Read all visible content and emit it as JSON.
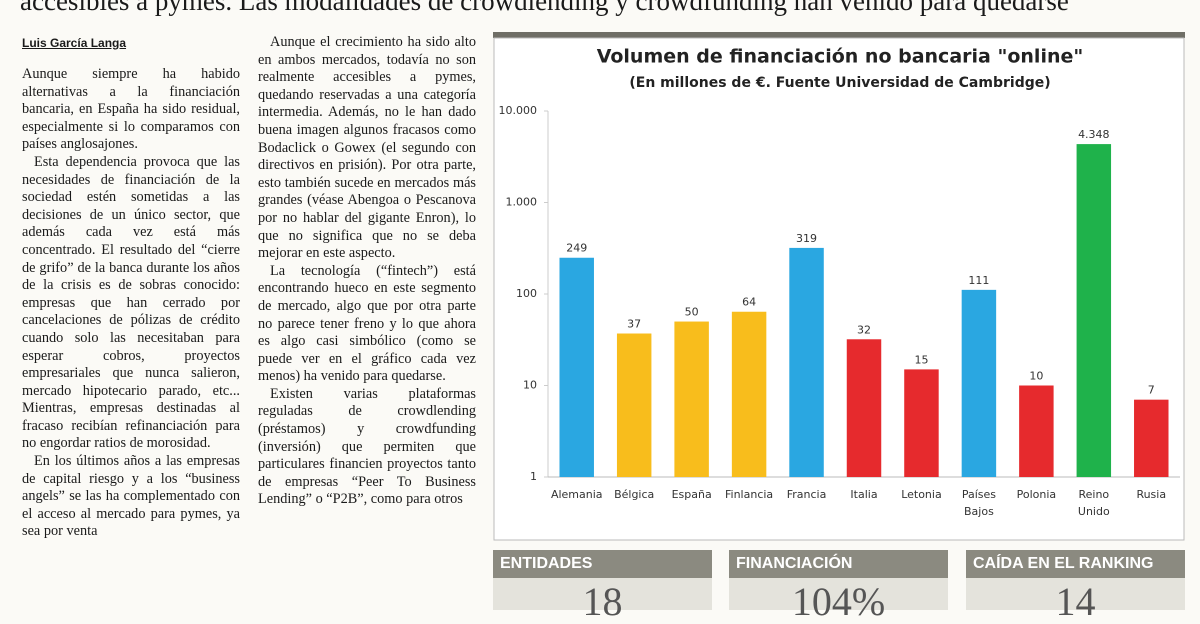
{
  "headline": "accesibles a pymes. Las modalidades de crowdlending y crowdfunding han venido para quedarse",
  "author": "Luis García Langa",
  "columns": [
    [
      "Aunque siempre ha habido alternativas a la financiación bancaria, en España ha sido residual, especialmente si lo comparamos con países anglosajones.",
      "Esta dependencia provoca que las necesidades de financiación de la sociedad estén sometidas a las decisiones de un único sector, que además cada vez está más concentrado. El resultado del “cierre de grifo” de la banca durante los años de la crisis es de sobras conocido: empresas que han cerrado por cancelaciones de pólizas de crédito cuando solo las necesitaban para esperar cobros, proyectos empresariales que nunca salieron, mercado hipotecario parado, etc... Mientras, empresas destinadas al fracaso recibían refinanciación para no engordar ratios de morosidad.",
      "En los últimos años a las empresas de capital riesgo y a los “business angels” se las ha complementado con el acceso al mercado para pymes, ya sea por venta"
    ],
    [
      "Aunque el crecimiento ha sido alto en ambos mercados, todavía no son realmente accesibles a pymes, quedando reservadas a una categoría intermedia. Además, no le han dado buena imagen algunos fracasos como Bodaclick o Gowex (el segundo con directivos en prisión). Por otra parte, esto también sucede en mercados más grandes (véase Abengoa o Pescanova por no hablar del gigante Enron), lo que no significa que no se deba mejorar en este aspecto.",
      "La tecnología (“fintech”) está encontrando hueco en este segmento de mercado, algo que por otra parte no parece tener freno y lo que ahora es algo casi simbólico (como se puede ver en el gráfico cada vez menos) ha venido para quedarse.",
      "Existen varias plataformas reguladas de crowdlending (préstamos) y crowdfunding (inversión) que permiten que particulares financien proyectos tanto de empresas “Peer To Business Lending” o “P2B”, como para otros"
    ]
  ],
  "chart_data": {
    "type": "bar",
    "title": "Volumen de financiación no bancaria \"online\"",
    "subtitle": "(En millones de €. Fuente Universidad de Cambridge)",
    "categories": [
      "Alemania",
      "Bélgica",
      "España",
      "Finlancia",
      "Francia",
      "Italia",
      "Letonia",
      "Países Bajos",
      "Polonia",
      "Reino Unido",
      "Rusia"
    ],
    "values": [
      249,
      37,
      50,
      64,
      319,
      32,
      15,
      111,
      10,
      4348,
      7
    ],
    "value_labels": [
      "249",
      "37",
      "50",
      "64",
      "319",
      "32",
      "15",
      "111",
      "10",
      "4.348",
      "7"
    ],
    "colors": [
      "#2aa7e1",
      "#f8bd1c",
      "#f8bd1c",
      "#f8bd1c",
      "#2aa7e1",
      "#e62a2d",
      "#e62a2d",
      "#2aa7e1",
      "#e62a2d",
      "#1fb24b",
      "#e62a2d"
    ],
    "log_scale": true,
    "ylim": [
      1,
      10000
    ],
    "yticks": [
      1,
      10,
      100,
      {
        "value": 1000,
        "label": "1.000"
      },
      {
        "value": 10000,
        "label": "10.000"
      }
    ],
    "grid": false
  },
  "stats": [
    {
      "label": "ENTIDADES",
      "value": "18"
    },
    {
      "label": "FINANCIACIÓN",
      "value": "104%"
    },
    {
      "label": "CAÍDA EN EL RANKING",
      "value": "14"
    }
  ]
}
